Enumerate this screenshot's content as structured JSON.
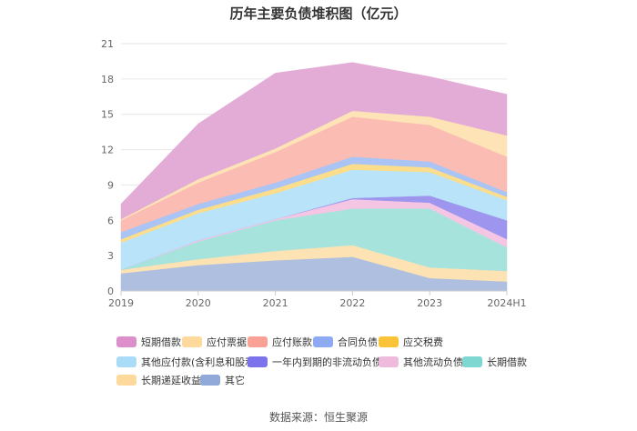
{
  "title": "历年主要负债堆积图（亿元）",
  "source": "数据来源：恒生聚源",
  "chart_data": {
    "type": "area",
    "stacked": true,
    "categories": [
      "2019",
      "2020",
      "2021",
      "2022",
      "2023",
      "2024H1"
    ],
    "yticks": [
      "0",
      "3",
      "6",
      "9",
      "12",
      "15",
      "18",
      "21"
    ],
    "ylim": [
      0,
      21
    ],
    "grid": true,
    "legend_position": "bottom",
    "series": [
      {
        "name": "其它",
        "color": "#aebfdf",
        "values": [
          1.5,
          2.2,
          2.6,
          2.9,
          1.1,
          0.8
        ]
      },
      {
        "name": "长期递延收益",
        "color": "#fde2b3",
        "values": [
          0.3,
          0.5,
          0.8,
          1.0,
          0.9,
          0.9
        ]
      },
      {
        "name": "长期借款",
        "color": "#a6e3dd",
        "values": [
          0.0,
          1.5,
          2.6,
          3.1,
          5.0,
          2.0
        ]
      },
      {
        "name": "其他流动负债",
        "color": "#f4c6e3",
        "values": [
          0.0,
          0.1,
          0.1,
          0.8,
          0.5,
          0.7
        ]
      },
      {
        "name": "一年内到期的非流动负债",
        "color": "#9d95ee",
        "values": [
          0.0,
          0.0,
          0.0,
          0.1,
          0.6,
          1.6
        ]
      },
      {
        "name": "其他应付款(含利息和股利)",
        "color": "#b8e3f9",
        "values": [
          2.3,
          2.3,
          2.2,
          2.4,
          2.0,
          1.7
        ]
      },
      {
        "name": "应交税费",
        "color": "#fbdd8c",
        "values": [
          0.3,
          0.3,
          0.4,
          0.5,
          0.4,
          0.3
        ]
      },
      {
        "name": "合同负债",
        "color": "#a9c4f5",
        "values": [
          0.6,
          0.5,
          0.5,
          0.6,
          0.5,
          0.4
        ]
      },
      {
        "name": "应付账款",
        "color": "#fbbcb4",
        "values": [
          1.0,
          1.8,
          2.6,
          3.4,
          3.1,
          3.0
        ]
      },
      {
        "name": "应付票据",
        "color": "#fde3b5",
        "values": [
          0.1,
          0.3,
          0.3,
          0.5,
          0.7,
          1.8
        ]
      },
      {
        "name": "短期借款",
        "color": "#e3acd7",
        "values": [
          1.3,
          4.7,
          6.4,
          4.1,
          3.4,
          3.5
        ]
      }
    ]
  },
  "legend": [
    {
      "label": "短期借款",
      "color": "#dc8fcb"
    },
    {
      "label": "应付票据",
      "color": "#fdd99b"
    },
    {
      "label": "应付账款",
      "color": "#f9a195"
    },
    {
      "label": "合同负债",
      "color": "#8eaaf3"
    },
    {
      "label": "应交税费",
      "color": "#fbc438"
    },
    {
      "label": "其他应付款(含利息和股利)",
      "color": "#aadcf8"
    },
    {
      "label": "一年内到期的非流动负债",
      "color": "#7c72ec"
    },
    {
      "label": "其他流动负债",
      "color": "#efbbdc"
    },
    {
      "label": "长期借款",
      "color": "#7fd7d1"
    },
    {
      "label": "长期递延收益",
      "color": "#fdd99b"
    },
    {
      "label": "其它",
      "color": "#91a9d8"
    }
  ]
}
